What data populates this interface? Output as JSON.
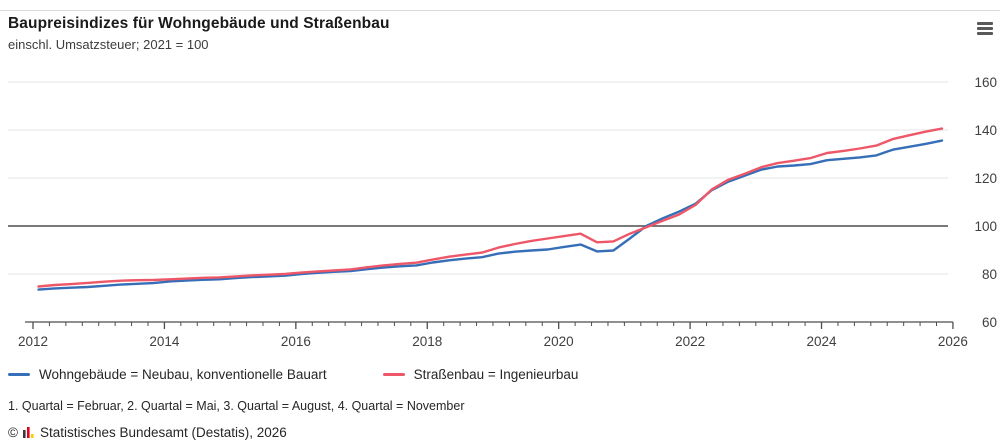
{
  "header": {
    "title": "Baupreisindizes für Wohngebäude und Straßenbau",
    "subtitle": "einschl. Umsatzsteuer; 2021 = 100"
  },
  "menu": {
    "icon": "hamburger-menu-icon"
  },
  "chart_data": {
    "type": "line",
    "title": "Baupreisindizes für Wohngebäude und Straßenbau",
    "subtitle": "einschl. Umsatzsteuer; 2021 = 100",
    "x_axis": {
      "min": 2012,
      "max": 2026,
      "tick_years": [
        2012,
        2014,
        2016,
        2018,
        2020,
        2022,
        2024,
        2026
      ],
      "minor_tick_interval_years": 0.25
    },
    "y_axis": {
      "min": 60,
      "max": 160,
      "ticks": [
        60,
        80,
        100,
        120,
        140,
        160
      ],
      "reference_line": 100,
      "position": "right"
    },
    "grid": true,
    "legend_position": "bottom",
    "sampling": "quarterly (Feb, May, Aug, Nov), first point 2012 Q1, last point 2025 Q4",
    "series": [
      {
        "name": "Wohngebäude = Neubau, konventionelle Bauart",
        "color": "#366eb8",
        "start": 2012.083,
        "step": 0.25,
        "values": [
          73.5,
          74.0,
          74.3,
          74.6,
          75.1,
          75.6,
          75.9,
          76.2,
          76.9,
          77.3,
          77.6,
          77.8,
          78.3,
          78.7,
          79.0,
          79.3,
          80.0,
          80.5,
          80.9,
          81.2,
          82.0,
          82.7,
          83.2,
          83.6,
          84.8,
          85.7,
          86.4,
          87.0,
          88.5,
          89.3,
          89.8,
          90.2,
          91.3,
          92.3,
          89.4,
          89.8,
          94.8,
          100.0,
          103.2,
          106.0,
          109.3,
          115.0,
          118.5,
          121.0,
          123.5,
          124.8,
          125.2,
          125.8,
          127.4,
          128.0,
          128.6,
          129.4,
          131.8,
          133.0,
          134.2,
          135.6
        ]
      },
      {
        "name": "Straßenbau = Ingenieurbau",
        "color": "#ee5768",
        "start": 2012.083,
        "step": 0.25,
        "values": [
          74.8,
          75.4,
          75.8,
          76.3,
          76.8,
          77.2,
          77.4,
          77.5,
          77.8,
          78.1,
          78.4,
          78.6,
          79.0,
          79.4,
          79.7,
          80.0,
          80.6,
          81.1,
          81.5,
          81.9,
          82.8,
          83.6,
          84.2,
          84.7,
          86.0,
          87.2,
          88.1,
          88.9,
          91.0,
          92.5,
          93.8,
          94.8,
          95.8,
          96.8,
          93.2,
          93.6,
          96.8,
          99.5,
          102.2,
          104.8,
          108.8,
          115.3,
          119.3,
          121.8,
          124.5,
          126.2,
          127.2,
          128.3,
          130.4,
          131.3,
          132.3,
          133.5,
          136.2,
          137.8,
          139.3,
          140.6
        ]
      }
    ]
  },
  "footnotes": {
    "quartal_note": "1. Quartal = Februar, 2. Quartal = Mai, 3. Quartal = August, 4. Quartal = November",
    "copyright_symbol": "©",
    "copyright_text": "Statistisches Bundesamt (Destatis), 2026"
  },
  "colors": {
    "grid_light": "#e6e6e6",
    "axis_dark": "#4d4d4d",
    "reference_line": "#4d4d4d",
    "logo_black": "#3a3a3a",
    "logo_red": "#e2001a",
    "logo_yellow": "#ffcc00"
  }
}
